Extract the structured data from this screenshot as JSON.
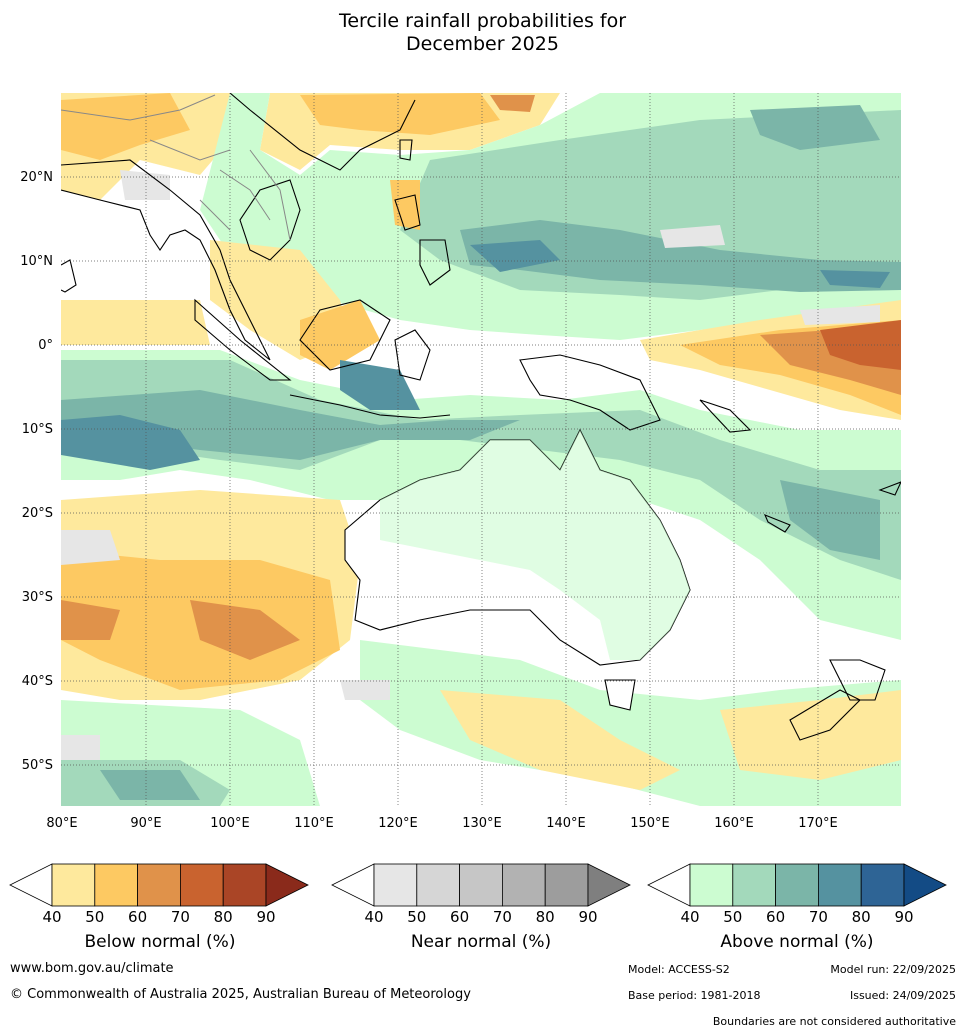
{
  "title_line1": "Tercile rainfall probabilities for",
  "title_line2": "December 2025",
  "lat_labels": [
    "20°N",
    "10°N",
    "0°",
    "10°S",
    "20°S",
    "30°S",
    "40°S",
    "50°S"
  ],
  "lon_labels": [
    "80°E",
    "90°E",
    "100°E",
    "110°E",
    "120°E",
    "130°E",
    "140°E",
    "150°E",
    "160°E",
    "170°E"
  ],
  "colorbars": [
    {
      "title": "Below normal (%)",
      "ticks": [
        "40",
        "50",
        "60",
        "70",
        "80",
        "90"
      ],
      "colors": [
        "#ffffff",
        "#fee99d",
        "#fdc962",
        "#e0924a",
        "#c9632f",
        "#aa4526",
        "#8a2a1b"
      ]
    },
    {
      "title": "Near normal (%)",
      "ticks": [
        "40",
        "50",
        "60",
        "70",
        "80",
        "90"
      ],
      "colors": [
        "#ffffff",
        "#e6e6e6",
        "#d6d6d6",
        "#c6c6c6",
        "#b2b2b2",
        "#9d9d9d",
        "#7f7f7f"
      ]
    },
    {
      "title": "Above normal (%)",
      "ticks": [
        "40",
        "50",
        "60",
        "70",
        "80",
        "90"
      ],
      "colors": [
        "#ffffff",
        "#ccfcd1",
        "#a3d9bb",
        "#7bb5a8",
        "#5592a0",
        "#2e6495",
        "#134b85"
      ]
    }
  ],
  "footer": {
    "url": "www.bom.gov.au/climate",
    "copyright": "© Commonwealth of Australia 2025, Australian Bureau of Meteorology",
    "model": "Model: ACCESS-S2",
    "model_run": "Model run: 22/09/2025",
    "base_period": "Base period: 1981-2018",
    "issued": "Issued: 24/09/2025",
    "disclaimer": "Boundaries are not considered authoritative"
  },
  "colors": {
    "coast": "#000000",
    "borders": "#888888",
    "grid": "#555555"
  }
}
